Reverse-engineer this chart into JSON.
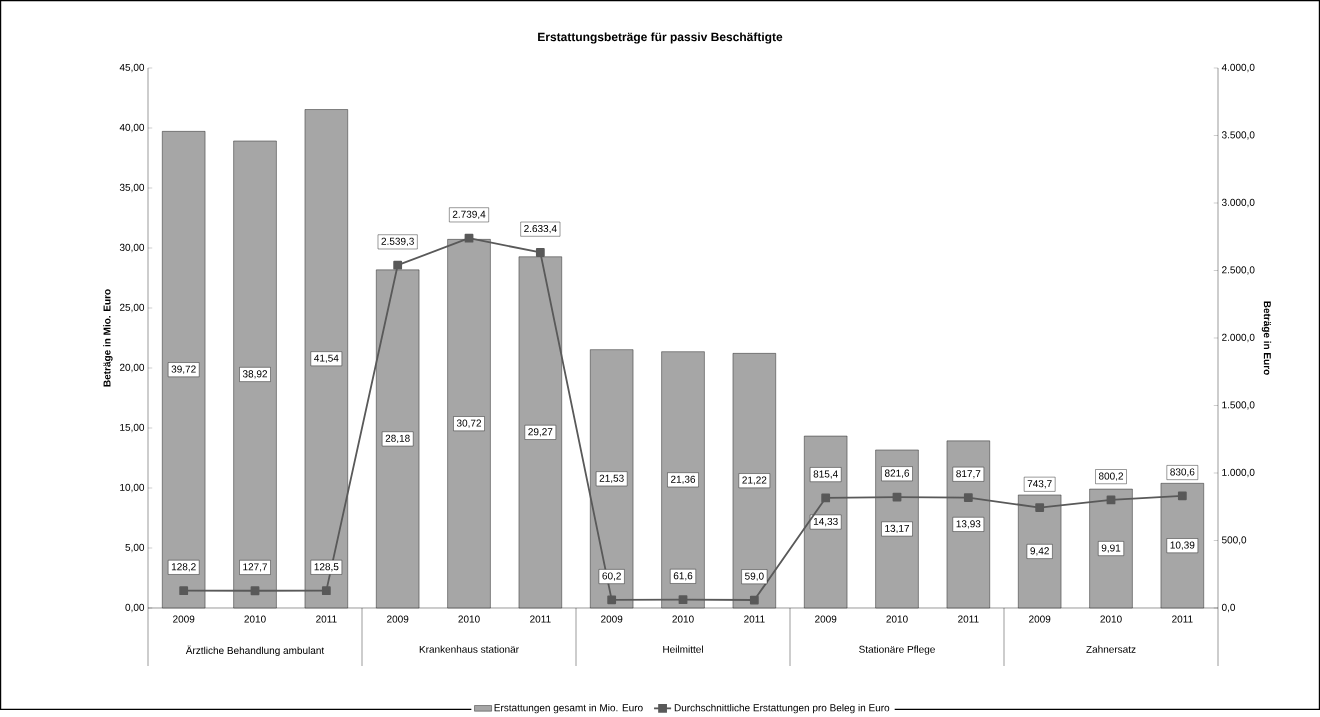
{
  "chart_data": {
    "type": "bar",
    "title": "Erstattungsbeträge für passiv Beschäftigte",
    "ylabel": "Beträge in Mio. Euro",
    "y2label": "Beträge in Euro",
    "categories": [
      "2009",
      "2010",
      "2011",
      "2009",
      "2010",
      "2011",
      "2009",
      "2010",
      "2011",
      "2009",
      "2010",
      "2011",
      "2009",
      "2010",
      "2011"
    ],
    "annotations": [
      "Ärztliche Behandlung ambulant",
      "Krankenhaus stationär",
      "Heilmittel",
      "Stationäre Pflege",
      "Zahnersatz"
    ],
    "series": [
      {
        "name": "Erstattungen gesamt in Mio. Euro",
        "color": "#a6a6a6",
        "values": [
          39.72,
          38.92,
          41.54,
          28.18,
          30.72,
          29.27,
          21.53,
          21.36,
          21.22,
          14.33,
          13.17,
          13.93,
          9.42,
          9.91,
          10.39
        ],
        "value_labels": [
          "39,72",
          "38,92",
          "41,54",
          "28,18",
          "30,72",
          "29,27",
          "21,53",
          "21,36",
          "21,22",
          "14,33",
          "13,17",
          "13,93",
          "9,42",
          "9,91",
          "10,39"
        ]
      },
      {
        "name": "Durchschnittliche Erstattungen pro Beleg in Euro",
        "type": "line",
        "axis": "y2",
        "color": "#595959",
        "marker": "square",
        "values": [
          128.2,
          127.7,
          128.5,
          2539.3,
          2739.4,
          2633.4,
          60.2,
          61.6,
          59.0,
          815.4,
          821.6,
          817.7,
          743.7,
          800.2,
          830.6
        ],
        "value_labels": [
          "128,2",
          "127,7",
          "128,5",
          "2.539,3",
          "2.739,4",
          "2.633,4",
          "60,2",
          "61,6",
          "59,0",
          "815,4",
          "821,6",
          "817,7",
          "743,7",
          "800,2",
          "830,6"
        ]
      }
    ],
    "ylim": [
      0,
      45
    ],
    "yticks": [
      {
        "value": 0,
        "label": "0,00"
      },
      {
        "value": 5,
        "label": "5,00"
      },
      {
        "value": 10,
        "label": "10,00"
      },
      {
        "value": 15,
        "label": "15,00"
      },
      {
        "value": 20,
        "label": "20,00"
      },
      {
        "value": 25,
        "label": "25,00"
      },
      {
        "value": 30,
        "label": "30,00"
      },
      {
        "value": 35,
        "label": "35,00"
      },
      {
        "value": 40,
        "label": "40,00"
      },
      {
        "value": 45,
        "label": "45,00"
      }
    ],
    "y2lim": [
      0,
      4000
    ],
    "y2ticks": [
      {
        "value": 0,
        "label": "0,0"
      },
      {
        "value": 500,
        "label": "500,0"
      },
      {
        "value": 1000,
        "label": "1.000,0"
      },
      {
        "value": 1500,
        "label": "1.500,0"
      },
      {
        "value": 2000,
        "label": "2.000,0"
      },
      {
        "value": 2500,
        "label": "2.500,0"
      },
      {
        "value": 3000,
        "label": "3.000,0"
      },
      {
        "value": 3500,
        "label": "3.500,0"
      },
      {
        "value": 4000,
        "label": "4.000,0"
      }
    ],
    "grid": false,
    "legend": "bottom"
  }
}
